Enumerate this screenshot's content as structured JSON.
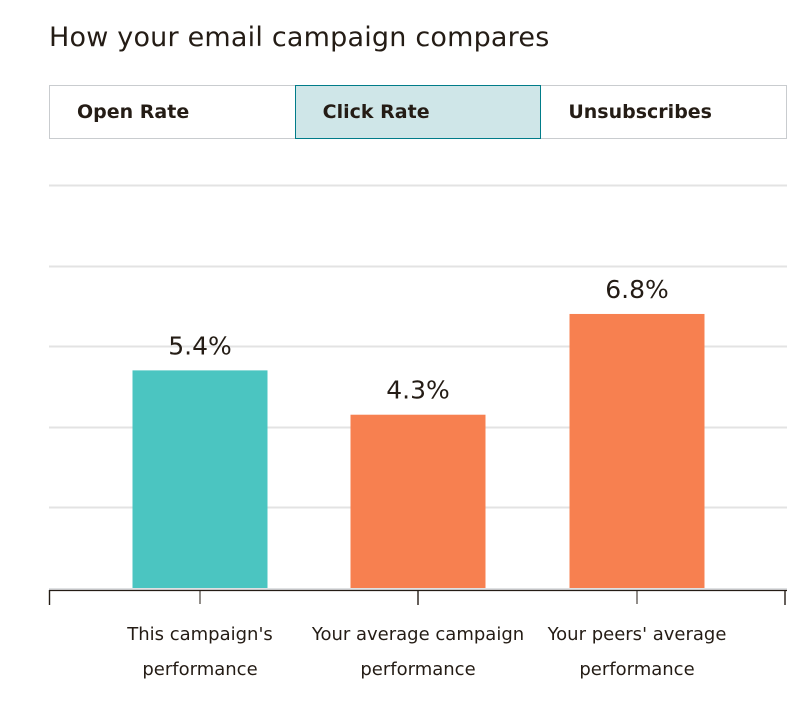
{
  "header": {
    "title": "How your email campaign compares"
  },
  "tabs": [
    {
      "label": "Open Rate",
      "active": false
    },
    {
      "label": "Click Rate",
      "active": true
    },
    {
      "label": "Unsubscribes",
      "active": false
    }
  ],
  "colors": {
    "campaign": "#4bc5c1",
    "comparison": "#f78050",
    "active_tab_bg": "#cfe6e8",
    "active_tab_border": "#007c89",
    "grid": "#e3e3e3"
  },
  "chart_data": {
    "type": "bar",
    "categories": [
      "This campaign's performance",
      "Your average campaign performance",
      "Your peers' average performance"
    ],
    "category_lines": [
      [
        "This campaign's",
        "performance"
      ],
      [
        "Your average campaign",
        "performance"
      ],
      [
        "Your peers' average",
        "performance"
      ]
    ],
    "values": [
      5.4,
      4.3,
      6.8
    ],
    "value_labels": [
      "5.4%",
      "4.3%",
      "6.8%"
    ],
    "bar_colors": [
      "#4bc5c1",
      "#f78050",
      "#f78050"
    ],
    "ylim": [
      0,
      10
    ],
    "grid": true,
    "legend": false,
    "title": "",
    "xlabel": "",
    "ylabel": ""
  }
}
